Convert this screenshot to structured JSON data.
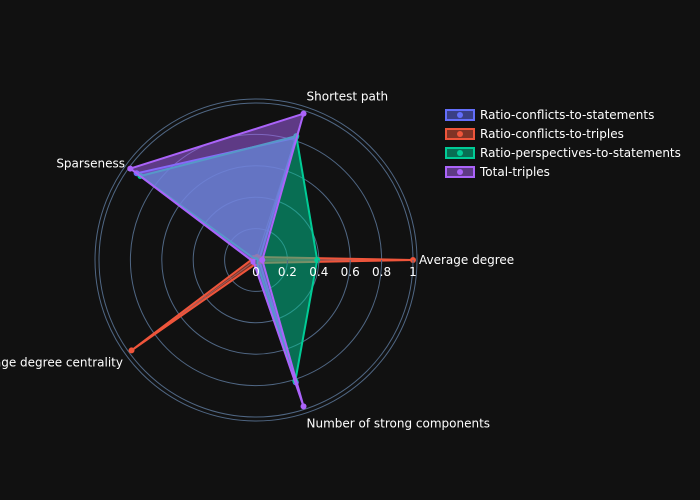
{
  "chart_data": {
    "type": "radar",
    "axes": [
      "Average degree",
      "Shortest path",
      "Sparseness",
      "Average degree centrality",
      "Number of strong components"
    ],
    "radial_range": [
      0,
      1
    ],
    "radial_ticks": [
      "0",
      "0.2",
      "0.4",
      "0.6",
      "0.8",
      "1"
    ],
    "series": [
      {
        "name": "Ratio-conflicts-to-statements",
        "color": "#636efa",
        "values": [
          0.02,
          0.82,
          0.94,
          0.02,
          0.82
        ]
      },
      {
        "name": "Ratio-conflicts-to-triples",
        "color": "#ef553b",
        "values": [
          1.0,
          0.02,
          0.02,
          0.98,
          0.02
        ]
      },
      {
        "name": "Ratio-perspectives-to-statements",
        "color": "#00cc96",
        "values": [
          0.39,
          0.83,
          0.91,
          0.0,
          0.81
        ]
      },
      {
        "name": "Total-triples",
        "color": "#ab63fa",
        "values": [
          0.04,
          0.98,
          0.99,
          0.02,
          0.98
        ]
      }
    ],
    "legend_position": "top-right",
    "grid": true
  }
}
